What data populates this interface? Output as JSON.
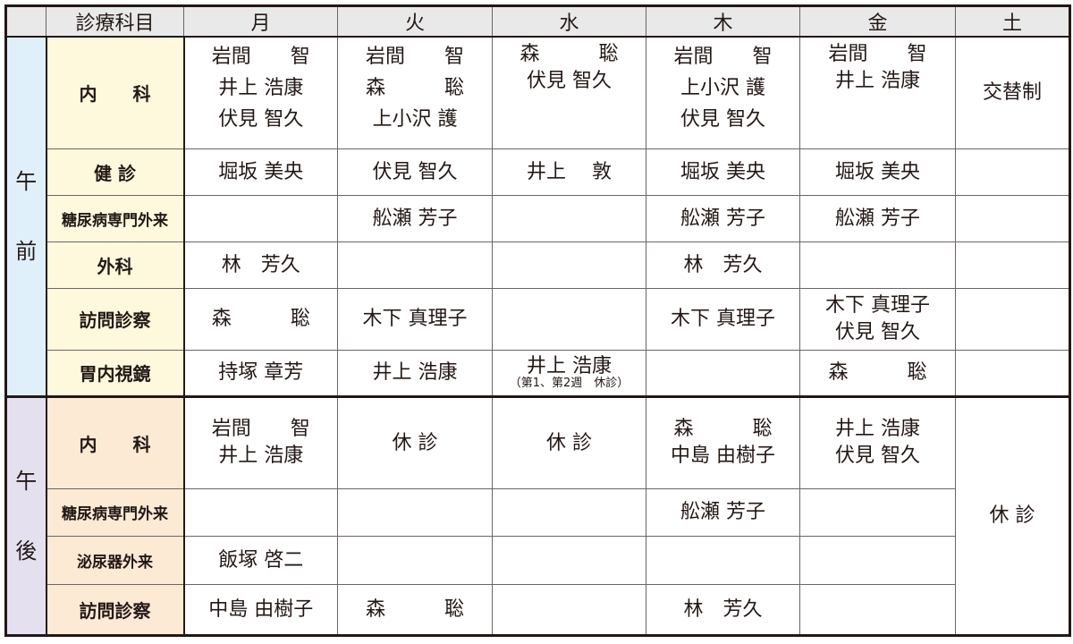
{
  "header": {
    "corner": "",
    "dept": "診療科目",
    "days": [
      "月",
      "火",
      "水",
      "木",
      "金",
      "土"
    ]
  },
  "morning": {
    "label": [
      "午",
      "前"
    ],
    "rows": [
      {
        "dept": "内　　科",
        "cells": [
          [
            "岩間　　智",
            "井上 浩康",
            "伏見 智久"
          ],
          [
            "岩間　　智",
            "森　　　聡",
            "上小沢 護"
          ],
          [
            "森　　　聡",
            "伏見 智久"
          ],
          [
            "岩間　　智",
            "上小沢 護",
            "伏見 智久"
          ],
          [
            "岩間　　智",
            "井上 浩康"
          ],
          [
            "交替制"
          ]
        ]
      },
      {
        "dept": "健 診",
        "cells": [
          [
            "堀坂 美央"
          ],
          [
            "伏見 智久"
          ],
          [
            "井上　 敦"
          ],
          [
            "堀坂 美央"
          ],
          [
            "堀坂 美央"
          ],
          []
        ]
      },
      {
        "dept": "糖尿病専門外来",
        "cells": [
          [],
          [
            "舩瀬 芳子"
          ],
          [],
          [
            "舩瀬 芳子"
          ],
          [
            "舩瀬 芳子"
          ],
          []
        ]
      },
      {
        "dept": "外科",
        "cells": [
          [
            "林　芳久"
          ],
          [],
          [],
          [
            "林　芳久"
          ],
          [],
          []
        ]
      },
      {
        "dept": "訪問診察",
        "cells": [
          [
            "森　　　聡"
          ],
          [
            "木下 真理子"
          ],
          [],
          [
            "木下 真理子"
          ],
          [
            "木下 真理子",
            "伏見 智久"
          ],
          []
        ]
      },
      {
        "dept": "胃内視鏡",
        "cells": [
          [
            "持塚 章芳"
          ],
          [
            "井上 浩康"
          ],
          [
            "井上 浩康"
          ],
          [],
          [
            "森　　　聡"
          ],
          []
        ],
        "note": "（第1、第2週　休診）"
      }
    ]
  },
  "afternoon": {
    "label": [
      "午",
      "後"
    ],
    "saturday": "休 診",
    "rows": [
      {
        "dept": "内　　科",
        "cells": [
          [
            "岩間　　智",
            "井上 浩康"
          ],
          [
            "休 診"
          ],
          [
            "休 診"
          ],
          [
            "森　　　聡",
            "中島 由樹子"
          ],
          [
            "井上 浩康",
            "伏見 智久"
          ]
        ]
      },
      {
        "dept": "糖尿病専門外来",
        "cells": [
          [],
          [],
          [],
          [
            "舩瀬 芳子"
          ],
          []
        ]
      },
      {
        "dept": "泌尿器外来",
        "cells": [
          [
            "飯塚 啓二"
          ],
          [],
          [],
          [],
          []
        ]
      },
      {
        "dept": "訪問診察",
        "cells": [
          [
            "中島 由樹子"
          ],
          [
            "森　　　聡"
          ],
          [],
          [
            "林　芳久"
          ],
          []
        ]
      }
    ]
  },
  "colors": {
    "header_bg": "#e9e9e9",
    "am_label_bg": "#dff0fb",
    "am_dept_bg": "#fef9dc",
    "pm_label_bg": "#e5e0f0",
    "pm_dept_bg": "#fdead4",
    "border": "#231815"
  }
}
